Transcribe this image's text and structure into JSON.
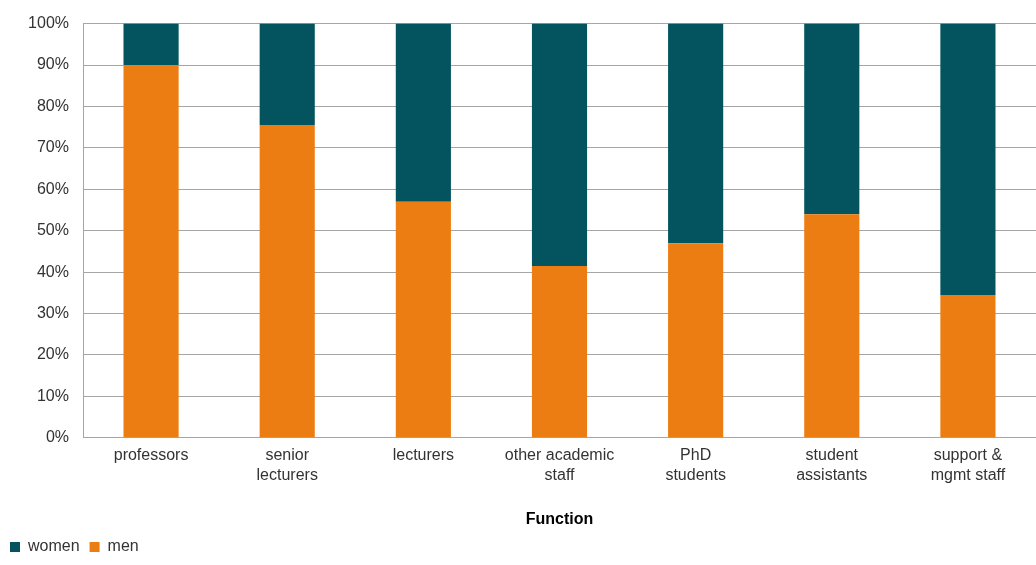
{
  "chart_data": {
    "type": "bar",
    "xlabel": "Function",
    "categories": [
      "professors",
      "senior\nlecturers",
      "lecturers",
      "other academic\nstaff",
      "PhD\nstudents",
      "student\nassistants",
      "support &\nmgmt staff"
    ],
    "series": [
      {
        "name": "men",
        "color": "#ec7d12",
        "values": [
          90,
          75.5,
          57,
          41.5,
          47,
          54,
          34.5
        ]
      },
      {
        "name": "women",
        "color": "#03545f",
        "values": [
          10,
          24.5,
          43,
          58.5,
          53,
          46,
          65.5
        ]
      }
    ],
    "stacked": true,
    "ylim": [
      0,
      100
    ],
    "yticks": [
      {
        "value": 0,
        "label": "0%"
      },
      {
        "value": 10,
        "label": "10%"
      },
      {
        "value": 20,
        "label": "20%"
      },
      {
        "value": 30,
        "label": "30%"
      },
      {
        "value": 40,
        "label": "40%"
      },
      {
        "value": 50,
        "label": "50%"
      },
      {
        "value": 60,
        "label": "60%"
      },
      {
        "value": 70,
        "label": "70%"
      },
      {
        "value": 80,
        "label": "80%"
      },
      {
        "value": 90,
        "label": "90%"
      },
      {
        "value": 100,
        "label": "100%"
      }
    ],
    "grid": "y",
    "legend": "bottom left"
  }
}
